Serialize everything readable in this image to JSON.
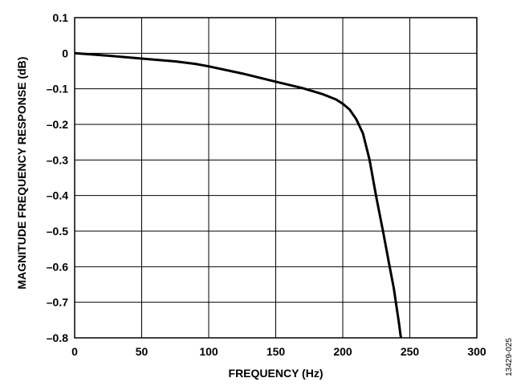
{
  "chart_data": {
    "type": "line",
    "xlabel": "FREQUENCY (Hz)",
    "ylabel": "MAGNITUDE FREQUENCY RESPONSE (dB)",
    "xlim": [
      0,
      300
    ],
    "ylim": [
      -0.8,
      0.1
    ],
    "x_ticks": [
      0,
      50,
      100,
      150,
      200,
      250,
      300
    ],
    "y_ticks": [
      0.1,
      0,
      -0.1,
      -0.2,
      -0.3,
      -0.4,
      -0.5,
      -0.6,
      -0.7,
      -0.8
    ],
    "x_tick_labels": [
      "0",
      "50",
      "100",
      "150",
      "200",
      "250",
      "300"
    ],
    "y_tick_labels": [
      "0.1",
      "0",
      "–0.1",
      "–0.2",
      "–0.3",
      "–0.4",
      "–0.5",
      "–0.6",
      "–0.7",
      "–0.8"
    ],
    "grid": true,
    "series": [
      {
        "x": [
          0,
          25,
          50,
          75,
          90,
          100,
          125,
          150,
          170,
          185,
          195,
          200,
          205,
          210,
          215,
          220,
          225,
          230,
          235,
          238,
          240,
          242,
          243,
          243.5
        ],
        "y": [
          0,
          -0.007,
          -0.015,
          -0.023,
          -0.03,
          -0.037,
          -0.057,
          -0.08,
          -0.098,
          -0.115,
          -0.13,
          -0.142,
          -0.158,
          -0.185,
          -0.225,
          -0.3,
          -0.405,
          -0.5,
          -0.6,
          -0.66,
          -0.71,
          -0.76,
          -0.79,
          -0.8
        ]
      }
    ]
  },
  "figure_id": "13429-025"
}
